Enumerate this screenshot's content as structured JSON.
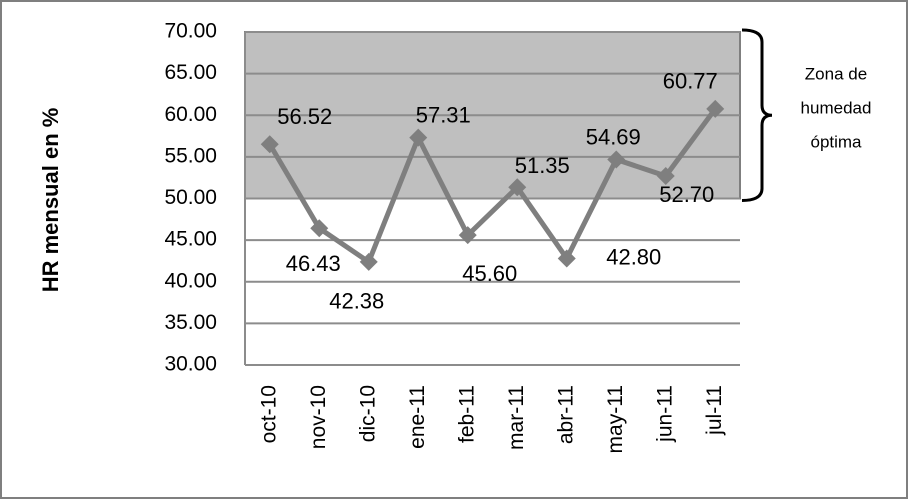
{
  "chart_data": {
    "type": "line",
    "y_label": "HR mensual en %",
    "categories": [
      "oct-10",
      "nov-10",
      "dic-10",
      "ene-11",
      "feb-11",
      "mar-11",
      "abr-11",
      "may-11",
      "jun-11",
      "jul-11"
    ],
    "values": [
      56.52,
      46.43,
      42.38,
      57.31,
      45.6,
      51.35,
      42.8,
      54.69,
      52.7,
      60.77
    ],
    "value_labels": [
      "56.52",
      "46.43",
      "42.38",
      "57.31",
      "45.60",
      "51.35",
      "42.80",
      "54.69",
      "52.70",
      "60.77"
    ],
    "color": "#7f7f7f",
    "ylim": [
      30,
      70
    ],
    "yticks": [
      {
        "value": 30,
        "label": "30.00"
      },
      {
        "value": 35,
        "label": "35.00"
      },
      {
        "value": 40,
        "label": "40.00"
      },
      {
        "value": 45,
        "label": "45.00"
      },
      {
        "value": 50,
        "label": "50.00"
      },
      {
        "value": 55,
        "label": "55.00"
      },
      {
        "value": 60,
        "label": "60.00"
      },
      {
        "value": 65,
        "label": "65.00"
      },
      {
        "value": 70,
        "label": "70.00"
      }
    ],
    "grid": true,
    "zone": {
      "range": [
        50,
        70
      ],
      "color": "#bfbfbf",
      "label": [
        "Zona de",
        "humedad",
        "óptima"
      ]
    }
  }
}
